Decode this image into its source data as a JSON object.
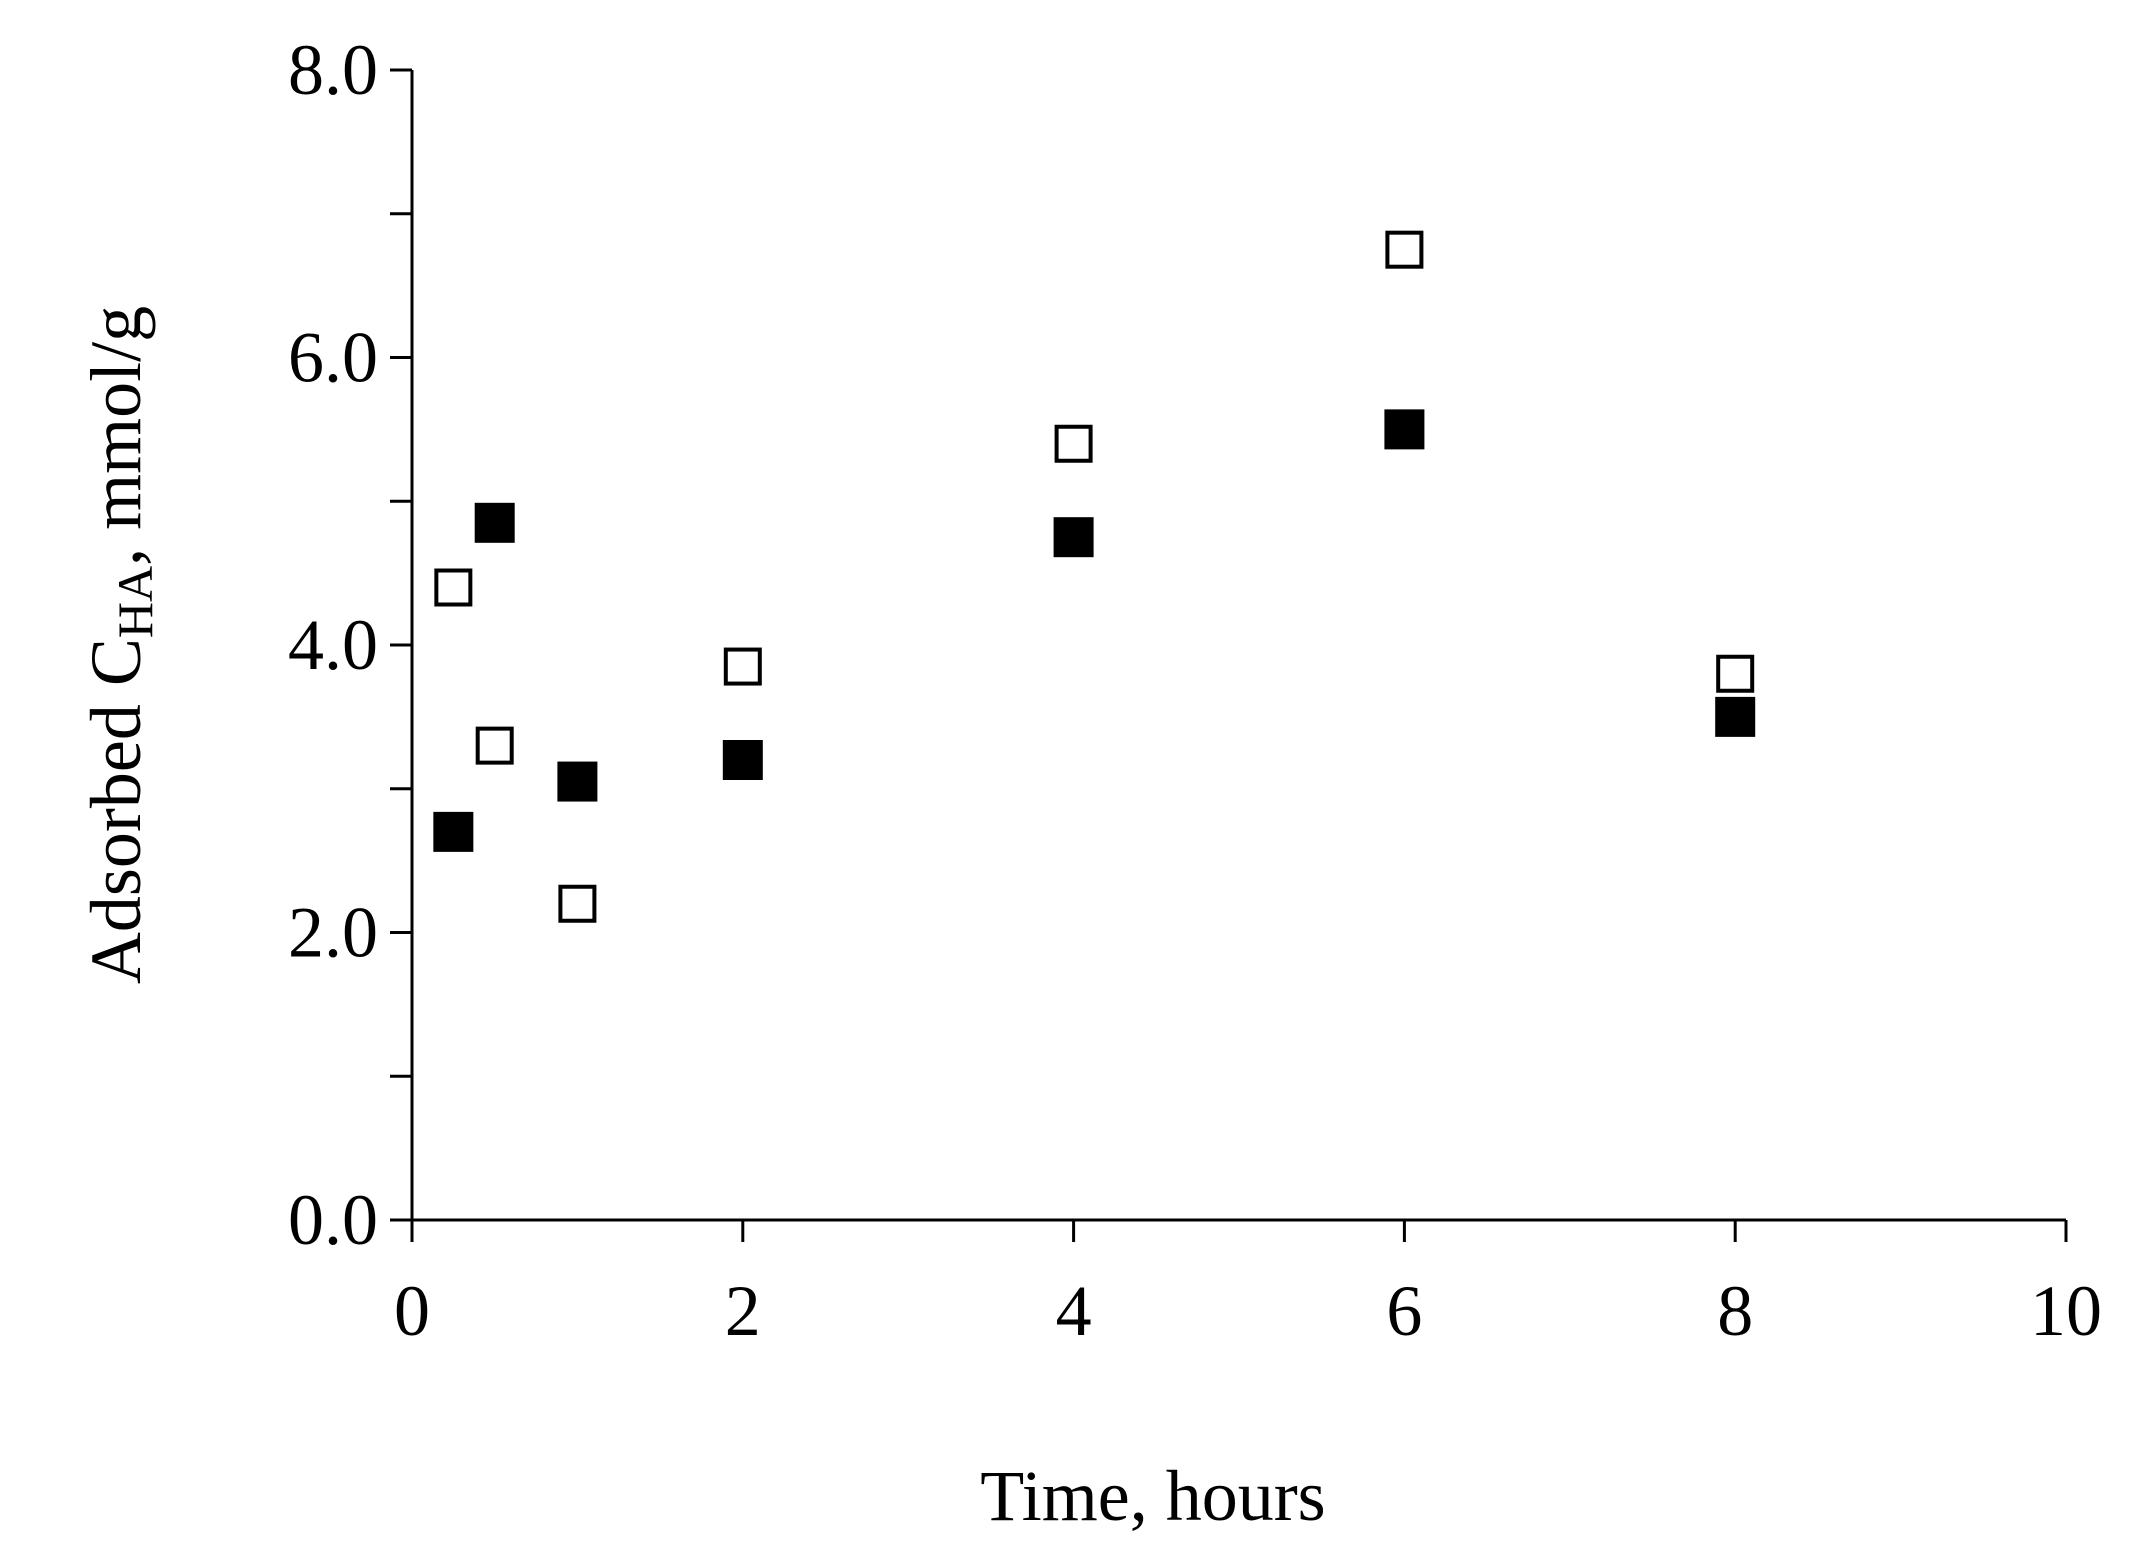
{
  "chart_data": {
    "type": "scatter",
    "title": "",
    "xlabel": "Time, hours",
    "ylabel": {
      "prefix": "Adsorbed C",
      "subscript": "HA",
      "suffix": ", mmol/g"
    },
    "xlim": [
      0,
      10
    ],
    "ylim": [
      0,
      8
    ],
    "x_ticks": [
      0,
      2,
      4,
      6,
      8,
      10
    ],
    "x_tick_labels": [
      "0",
      "2",
      "4",
      "6",
      "8",
      "10"
    ],
    "y_ticks": [
      0,
      1,
      2,
      3,
      4,
      5,
      6,
      7,
      8
    ],
    "y_tick_labels": [
      "0.0",
      "",
      "2.0",
      "",
      "4.0",
      "",
      "6.0",
      "",
      "8.0"
    ],
    "grid": false,
    "legend": false,
    "series": [
      {
        "marker": "square-filled",
        "color": "#000000",
        "x": [
          0.25,
          0.5,
          1,
          2,
          4,
          6,
          8
        ],
        "y": [
          2.7,
          4.85,
          3.05,
          3.2,
          4.75,
          5.5,
          3.5
        ]
      },
      {
        "marker": "square-open",
        "color": "#000000",
        "x": [
          0.25,
          0.5,
          1,
          2,
          4,
          6,
          8
        ],
        "y": [
          4.4,
          3.3,
          2.2,
          3.85,
          5.4,
          6.75,
          3.8
        ]
      }
    ]
  }
}
